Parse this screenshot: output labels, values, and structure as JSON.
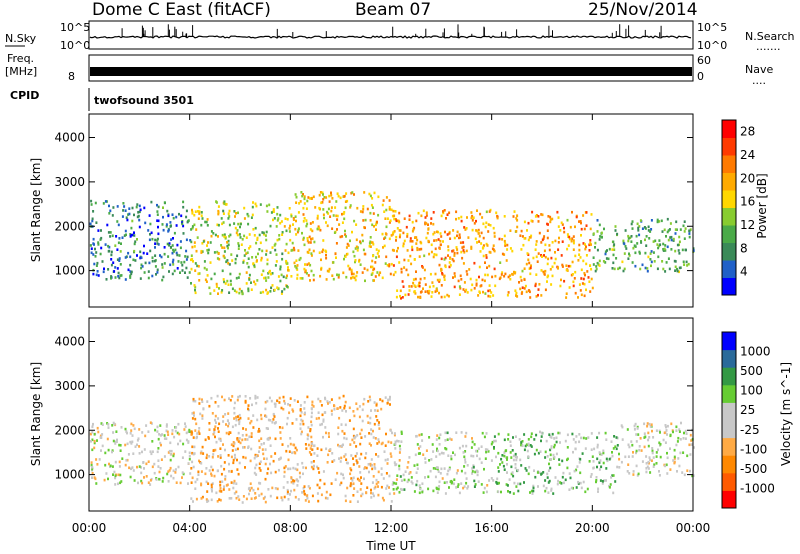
{
  "header": {
    "station": "Dome C East (fitACF)",
    "beam": "Beam 07",
    "date": "25/Nov/2014"
  },
  "top_panels": {
    "nsky_label": "N.Sky",
    "nsky_tick_top": "10^5",
    "nsky_tick_bottom": "10^0",
    "nsearch_label": "N.Search",
    "nsearch_dots": ".......",
    "freq_label": "Freq.",
    "freq_unit": "[MHz]",
    "freq_tick": "8",
    "nave_label": "Nave",
    "nave_dots": "....",
    "nave_tick_top": "60",
    "nave_tick_bottom": "0",
    "cpid_label": "CPID",
    "cpid_value": "twofsound 3501"
  },
  "colors": {
    "power": [
      "#0000ff",
      "#2060c8",
      "#3a8a58",
      "#4aaa48",
      "#88cc30",
      "#ffd700",
      "#ffaa00",
      "#ff7a00",
      "#ff3a00",
      "#ff0000"
    ],
    "velocity": [
      "#ff0000",
      "#ff5a00",
      "#ff8800",
      "#ffaa44",
      "#c8c8c8",
      "#c8c8c8",
      "#66cc33",
      "#339944",
      "#2a6a9a",
      "#0000ff"
    ]
  },
  "chart_data": [
    {
      "type": "heatmap",
      "title": "",
      "xlabel": "Time UT",
      "ylabel": "Slant Range [km]",
      "x_ticks": [
        "00:00",
        "04:00",
        "08:00",
        "12:00",
        "16:00",
        "20:00",
        "00:00"
      ],
      "y_ticks": [
        "1000",
        "2000",
        "3000",
        "4000"
      ],
      "xlim": [
        0,
        24
      ],
      "ylim": [
        180,
        4530
      ],
      "colorbar_label": "Power [dB]",
      "colorbar_ticks": [
        "4",
        "8",
        "12",
        "16",
        "20",
        "24",
        "28"
      ],
      "colorbar_range": [
        0,
        30
      ],
      "description_regions": [
        {
          "time": [
            0.0,
            4.0
          ],
          "range": [
            800,
            2600
          ],
          "value": 7
        },
        {
          "time": [
            4.0,
            8.0
          ],
          "range": [
            500,
            2600
          ],
          "value": 14
        },
        {
          "time": [
            8.0,
            12.0
          ],
          "range": [
            800,
            2800
          ],
          "value": 18
        },
        {
          "time": [
            12.0,
            20.0
          ],
          "range": [
            400,
            2400
          ],
          "value": 20
        },
        {
          "time": [
            20.0,
            24.0
          ],
          "range": [
            1000,
            2200
          ],
          "value": 10
        }
      ]
    },
    {
      "type": "heatmap",
      "title": "",
      "xlabel": "Time UT",
      "ylabel": "Slant Range [km]",
      "x_ticks": [
        "00:00",
        "04:00",
        "08:00",
        "12:00",
        "16:00",
        "20:00",
        "00:00"
      ],
      "y_ticks": [
        "1000",
        "2000",
        "3000",
        "4000"
      ],
      "xlim": [
        0,
        24
      ],
      "ylim": [
        180,
        4530
      ],
      "colorbar_label": "Velocity [m s^-1]",
      "colorbar_ticks": [
        "1000",
        "500",
        "100",
        "25",
        "-25",
        "-100",
        "-500",
        "-1000"
      ],
      "colorbar_range": [
        -1250,
        1250
      ],
      "description_regions": [
        {
          "time": [
            0.0,
            4.0
          ],
          "range": [
            800,
            2200
          ],
          "value": 0
        },
        {
          "time": [
            4.0,
            12.0
          ],
          "range": [
            400,
            2800
          ],
          "value": -300
        },
        {
          "time": [
            12.0,
            16.0
          ],
          "range": [
            600,
            2000
          ],
          "value": 100
        },
        {
          "time": [
            16.0,
            21.0
          ],
          "range": [
            600,
            2000
          ],
          "value": 300
        },
        {
          "time": [
            21.0,
            24.0
          ],
          "range": [
            1000,
            2200
          ],
          "value": 50
        }
      ]
    }
  ]
}
